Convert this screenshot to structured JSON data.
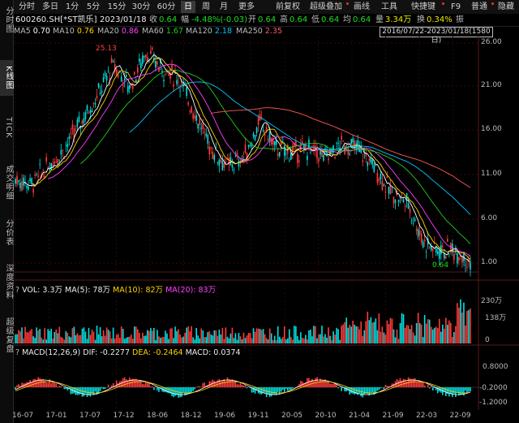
{
  "sidebar": {
    "items": [
      {
        "label": "分时图",
        "active": false
      },
      {
        "label": "K线图",
        "active": true
      },
      {
        "label": "TICK",
        "active": false
      },
      {
        "label": "成交明细",
        "active": false
      },
      {
        "label": "分价表",
        "active": false
      },
      {
        "label": "深度资料",
        "active": false
      },
      {
        "label": "超级复盘",
        "active": false
      }
    ]
  },
  "toolbar": {
    "periods": [
      "分时",
      "多日",
      "1分",
      "5分",
      "15分",
      "30分",
      "60分",
      "日",
      "周",
      "月",
      "更多"
    ],
    "active_period": "日",
    "tools": [
      "前复权",
      "超级叠加",
      "画线",
      "工具",
      "快捷键",
      "F9",
      "普通",
      "隐藏"
    ]
  },
  "quote": {
    "code_name": "600260.SH[*ST凯乐]",
    "date": "2023/01/18",
    "close_label": "收",
    "close": "0.64",
    "change_label": "幅",
    "change": "-4.48%(-0.03)",
    "open_label": "开",
    "open": "0.64",
    "high_label": "高",
    "high": "0.64",
    "low_label": "低",
    "low": "0.64",
    "avg_label": "均",
    "avg": "0.64",
    "volume_label": "量",
    "volume": "3.34万",
    "turnover_label": "换",
    "turnover": "0.34%",
    "amplitude_label": "振"
  },
  "ma_row": {
    "items": [
      {
        "name": "MA5",
        "value": "0.70",
        "color": "#ffffff"
      },
      {
        "name": "MA10",
        "value": "0.76",
        "color": "#ffd400"
      },
      {
        "name": "MA20",
        "value": "0.86",
        "color": "#ff40ff"
      },
      {
        "name": "MA60",
        "value": "1.67",
        "color": "#22cc22"
      },
      {
        "name": "MA120",
        "value": "2.18",
        "color": "#00c8ff"
      },
      {
        "name": "MA250",
        "value": "2.35",
        "color": "#ff5a5a"
      }
    ],
    "date_range": "2016/07/22-2023/01/18(1580日)"
  },
  "price_axis": {
    "labels": [
      "26.00",
      "21.00",
      "16.00",
      "11.00",
      "6.00",
      "1.00"
    ]
  },
  "annotations": {
    "max": "25.13",
    "min": "0.64"
  },
  "volume_panel": {
    "title": "VOL: 3.3万",
    "ma5": "MA(5): 78万",
    "ma10": "MA(10): 82万",
    "ma20": "MA(20): 83万",
    "axis": [
      "230万",
      "138万",
      "0"
    ]
  },
  "macd_panel": {
    "title": "MACD(12,26,9)",
    "dif": "DIF: -0.2277",
    "dea": "DEA: -0.2464",
    "macd": "MACD: 0.0374",
    "axis": [
      "0.8000",
      "-0.2000",
      "-1.2000"
    ]
  },
  "x_axis": {
    "labels": [
      "16-07",
      "17-01",
      "17-07",
      "17-12",
      "18-06",
      "18-12",
      "19-06",
      "19-11",
      "20-05",
      "20-10",
      "21-04",
      "21-09",
      "22-03",
      "22-09"
    ]
  },
  "colors": {
    "up": "#ff3b3b",
    "down": "#00e0e0",
    "bg": "#000000",
    "grid": "#3a0a0a"
  }
}
